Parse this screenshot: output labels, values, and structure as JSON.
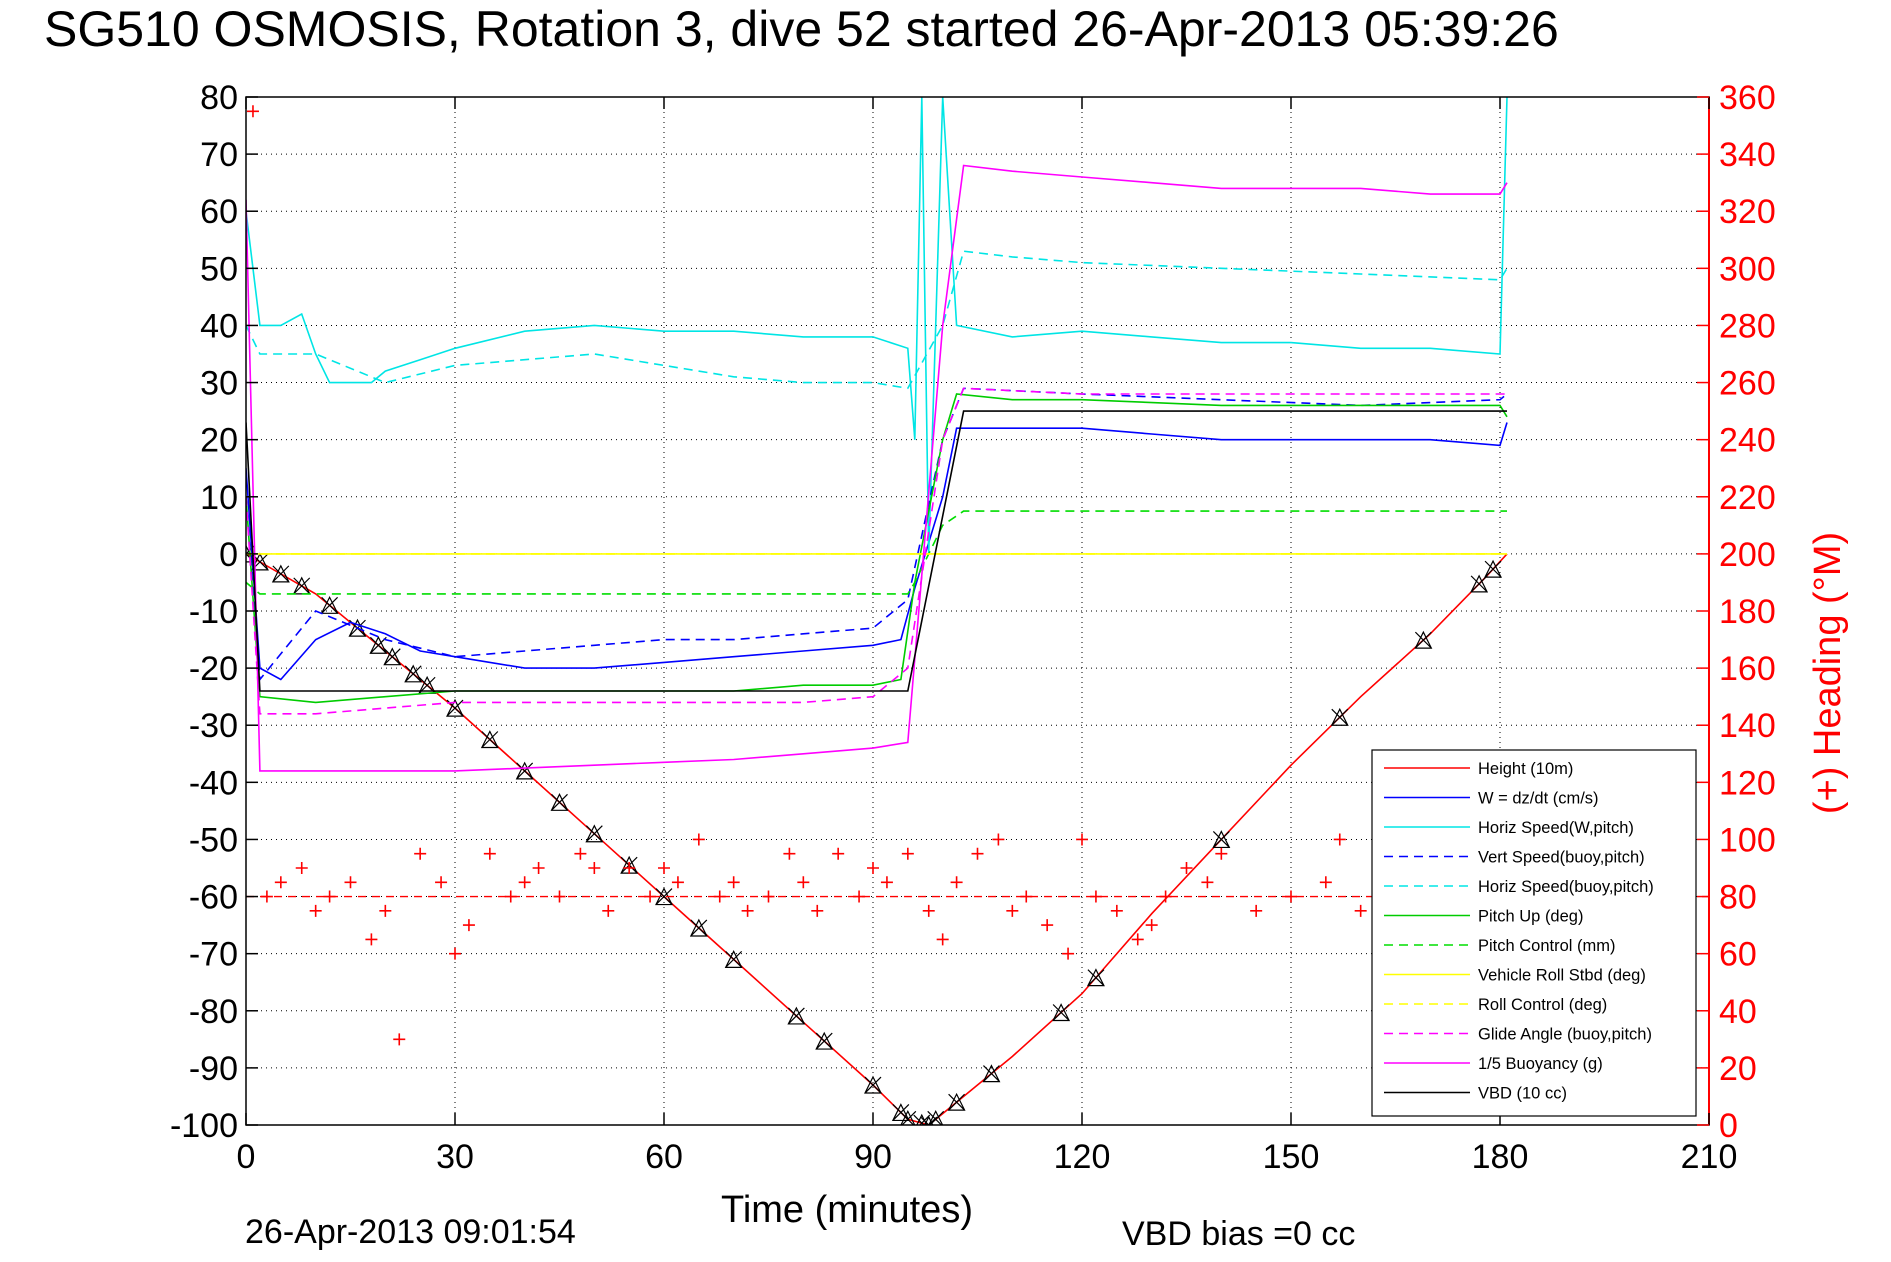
{
  "page": {
    "title": "SG510 OSMOSIS, Rotation 3, dive 52 started 26-Apr-2013 05:39:26",
    "timestamp": "26-Apr-2013 09:01:54",
    "vbd_bias": "VBD bias =0 cc"
  },
  "chart_data": {
    "type": "line",
    "title": "SG510 OSMOSIS, Rotation 3, dive 52 started 26-Apr-2013 05:39:26",
    "xlabel": "Time (minutes)",
    "ylabel_right": "(+) Heading (°M)",
    "xlim": [
      0,
      210
    ],
    "ylim_left": [
      -100,
      80
    ],
    "ylim_right": [
      0,
      360
    ],
    "x_ticks": [
      "0",
      "30",
      "60",
      "90",
      "120",
      "150",
      "180",
      "210"
    ],
    "y_left_ticks": [
      "80",
      "70",
      "60",
      "50",
      "40",
      "30",
      "20",
      "10",
      "0",
      "-10",
      "-20",
      "-30",
      "-40",
      "-50",
      "-60",
      "-70",
      "-80",
      "-90",
      "-100"
    ],
    "y_right_ticks": [
      "360",
      "340",
      "320",
      "300",
      "280",
      "260",
      "240",
      "220",
      "200",
      "180",
      "160",
      "140",
      "120",
      "100",
      "80",
      "60",
      "40",
      "20",
      "0"
    ],
    "grid": true,
    "legend_position": "bottom-right",
    "heading_reference": 80,
    "series": [
      {
        "name": "Height (10m)",
        "color": "#ff0000",
        "style": "solid",
        "x": [
          0,
          10,
          20,
          30,
          40,
          50,
          60,
          70,
          80,
          90,
          95,
          98,
          100,
          105,
          110,
          120,
          130,
          140,
          150,
          160,
          170,
          178,
          181
        ],
        "y": [
          0,
          -7,
          -17,
          -27,
          -38,
          -49,
          -60,
          -71,
          -82,
          -93,
          -99,
          -100,
          -98,
          -93,
          -88,
          -77,
          -63,
          -50,
          -37,
          -25,
          -14,
          -4,
          0
        ],
        "markers_x": [
          0,
          2,
          5,
          8,
          12,
          16,
          19,
          21,
          24,
          26,
          30,
          35,
          40,
          45,
          50,
          55,
          60,
          65,
          70,
          79,
          83,
          90,
          94,
          95,
          97,
          98,
          99,
          102,
          107,
          117,
          122,
          140,
          157,
          169,
          177,
          179
        ]
      },
      {
        "name": "W = dz/dt (cm/s)",
        "color": "#0000ff",
        "style": "solid",
        "x": [
          0,
          2,
          5,
          10,
          15,
          20,
          25,
          30,
          40,
          50,
          60,
          70,
          80,
          90,
          94,
          96,
          100,
          102,
          110,
          120,
          130,
          140,
          150,
          160,
          170,
          180,
          181
        ],
        "y": [
          15,
          -20,
          -22,
          -15,
          -12,
          -14,
          -17,
          -18,
          -20,
          -20,
          -19,
          -18,
          -17,
          -16,
          -15,
          -6,
          10,
          22,
          22,
          22,
          21,
          20,
          20,
          20,
          20,
          19,
          23
        ]
      },
      {
        "name": "Horiz Speed(W,pitch)",
        "color": "#00e5e5",
        "style": "solid",
        "x": [
          0,
          2,
          5,
          8,
          10,
          12,
          15,
          18,
          20,
          25,
          30,
          40,
          50,
          60,
          70,
          80,
          90,
          95,
          96,
          97,
          98,
          100,
          102,
          110,
          120,
          130,
          140,
          150,
          160,
          170,
          180,
          181
        ],
        "y": [
          60,
          40,
          40,
          42,
          35,
          30,
          30,
          30,
          32,
          34,
          36,
          39,
          40,
          39,
          39,
          38,
          38,
          36,
          20,
          80,
          0,
          80,
          40,
          38,
          39,
          38,
          37,
          37,
          36,
          36,
          35,
          80
        ]
      },
      {
        "name": "Vert Speed(buoy,pitch)",
        "color": "#0000ff",
        "style": "dashed",
        "x": [
          0,
          2,
          10,
          20,
          30,
          40,
          50,
          60,
          70,
          80,
          90,
          95,
          100,
          103,
          120,
          140,
          160,
          180,
          181
        ],
        "y": [
          10,
          -22,
          -10,
          -15,
          -18,
          -17,
          -16,
          -15,
          -15,
          -14,
          -13,
          -8,
          20,
          29,
          28,
          27,
          26,
          27,
          28
        ]
      },
      {
        "name": "Horiz Speed(buoy,pitch)",
        "color": "#00e5e5",
        "style": "dashed",
        "x": [
          0,
          2,
          10,
          20,
          30,
          40,
          50,
          60,
          70,
          80,
          90,
          95,
          100,
          103,
          110,
          120,
          140,
          160,
          180,
          181
        ],
        "y": [
          40,
          35,
          35,
          30,
          33,
          34,
          35,
          33,
          31,
          30,
          30,
          29,
          40,
          53,
          52,
          51,
          50,
          49,
          48,
          50
        ]
      },
      {
        "name": "Pitch Up (deg)",
        "color": "#00cc00",
        "style": "solid",
        "x": [
          0,
          2,
          10,
          20,
          30,
          40,
          50,
          60,
          70,
          80,
          90,
          94,
          96,
          100,
          102,
          110,
          120,
          140,
          160,
          180,
          181
        ],
        "y": [
          10,
          -25,
          -26,
          -25,
          -24,
          -24,
          -24,
          -24,
          -24,
          -23,
          -23,
          -22,
          -5,
          20,
          28,
          27,
          27,
          26,
          26,
          26,
          24
        ]
      },
      {
        "name": "Pitch Control (mm)",
        "color": "#00dd00",
        "style": "dashed",
        "x": [
          0,
          2,
          20,
          40,
          60,
          80,
          95,
          96,
          100,
          103,
          120,
          140,
          160,
          180,
          181
        ],
        "y": [
          -5,
          -7,
          -7,
          -7,
          -7,
          -7,
          -7,
          -5,
          5,
          7.5,
          7.5,
          7.5,
          7.5,
          7.5,
          7.5
        ]
      },
      {
        "name": "Vehicle Roll Stbd (deg)",
        "color": "#ffff00",
        "style": "solid",
        "x": [
          0,
          5,
          10,
          20,
          30,
          40,
          50,
          60,
          70,
          80,
          90,
          95,
          100,
          110,
          120,
          130,
          140,
          150,
          160,
          170,
          180,
          181
        ],
        "y": [
          0,
          0,
          0,
          0,
          0,
          0,
          0,
          0,
          0,
          0,
          0,
          0,
          0,
          0,
          0,
          0,
          0,
          0,
          0,
          0,
          0,
          0
        ]
      },
      {
        "name": "Roll Control (deg)",
        "color": "#ffff00",
        "style": "dashed",
        "x": [
          0,
          20,
          40,
          60,
          80,
          95,
          100,
          120,
          140,
          160,
          181
        ],
        "y": [
          0,
          0,
          0,
          0,
          0,
          0,
          0,
          0,
          0,
          0,
          0
        ]
      },
      {
        "name": "Glide Angle (buoy,pitch)",
        "color": "#ff00ff",
        "style": "dashed",
        "x": [
          0,
          2,
          10,
          20,
          30,
          40,
          50,
          60,
          70,
          80,
          90,
          95,
          100,
          103,
          120,
          140,
          160,
          180,
          181
        ],
        "y": [
          10,
          -28,
          -28,
          -27,
          -26,
          -26,
          -26,
          -26,
          -26,
          -26,
          -25,
          -20,
          20,
          29,
          28,
          28,
          28,
          28,
          28
        ]
      },
      {
        "name": "1/5 Buoyancy (g)",
        "color": "#ff00ff",
        "style": "solid",
        "x": [
          0,
          2,
          10,
          20,
          30,
          40,
          50,
          60,
          70,
          80,
          90,
          95,
          100,
          103,
          110,
          120,
          130,
          140,
          150,
          160,
          170,
          180,
          181
        ],
        "y": [
          62,
          -38,
          -38,
          -38,
          -38,
          -37.5,
          -37,
          -36.5,
          -36,
          -35,
          -34,
          -33,
          40,
          68,
          67,
          66,
          65,
          64,
          64,
          64,
          63,
          63,
          65
        ]
      },
      {
        "name": "VBD (10 cc)",
        "color": "#000000",
        "style": "solid",
        "x": [
          0,
          2,
          20,
          40,
          60,
          80,
          94,
          95,
          103,
          120,
          140,
          160,
          180,
          181
        ],
        "y": [
          23,
          -24,
          -24,
          -24,
          -24,
          -24,
          -24,
          -24,
          25,
          25,
          25,
          25,
          25,
          25
        ]
      },
      {
        "name": "(+) Heading (°M)",
        "axis": "right",
        "color": "#ff0000",
        "style": "markers",
        "x": [
          1,
          3,
          5,
          8,
          10,
          12,
          15,
          18,
          20,
          22,
          25,
          28,
          30,
          32,
          35,
          38,
          40,
          42,
          45,
          48,
          50,
          52,
          55,
          58,
          60,
          62,
          65,
          68,
          70,
          72,
          75,
          78,
          80,
          82,
          85,
          88,
          90,
          92,
          95,
          98,
          100,
          102,
          105,
          108,
          110,
          112,
          115,
          118,
          120,
          122,
          125,
          128,
          130,
          132,
          135,
          138,
          140,
          145,
          150,
          155,
          157,
          160,
          165,
          170,
          175,
          180
        ],
        "y": [
          355,
          80,
          85,
          90,
          75,
          80,
          85,
          65,
          75,
          30,
          95,
          85,
          60,
          70,
          95,
          80,
          85,
          90,
          80,
          95,
          90,
          75,
          90,
          80,
          90,
          85,
          100,
          80,
          85,
          75,
          80,
          95,
          85,
          75,
          95,
          80,
          90,
          85,
          95,
          75,
          65,
          85,
          95,
          100,
          75,
          80,
          70,
          60,
          100,
          80,
          75,
          65,
          70,
          80,
          90,
          85,
          95,
          75,
          80,
          85,
          100,
          75,
          70,
          80,
          75,
          80
        ]
      }
    ]
  }
}
